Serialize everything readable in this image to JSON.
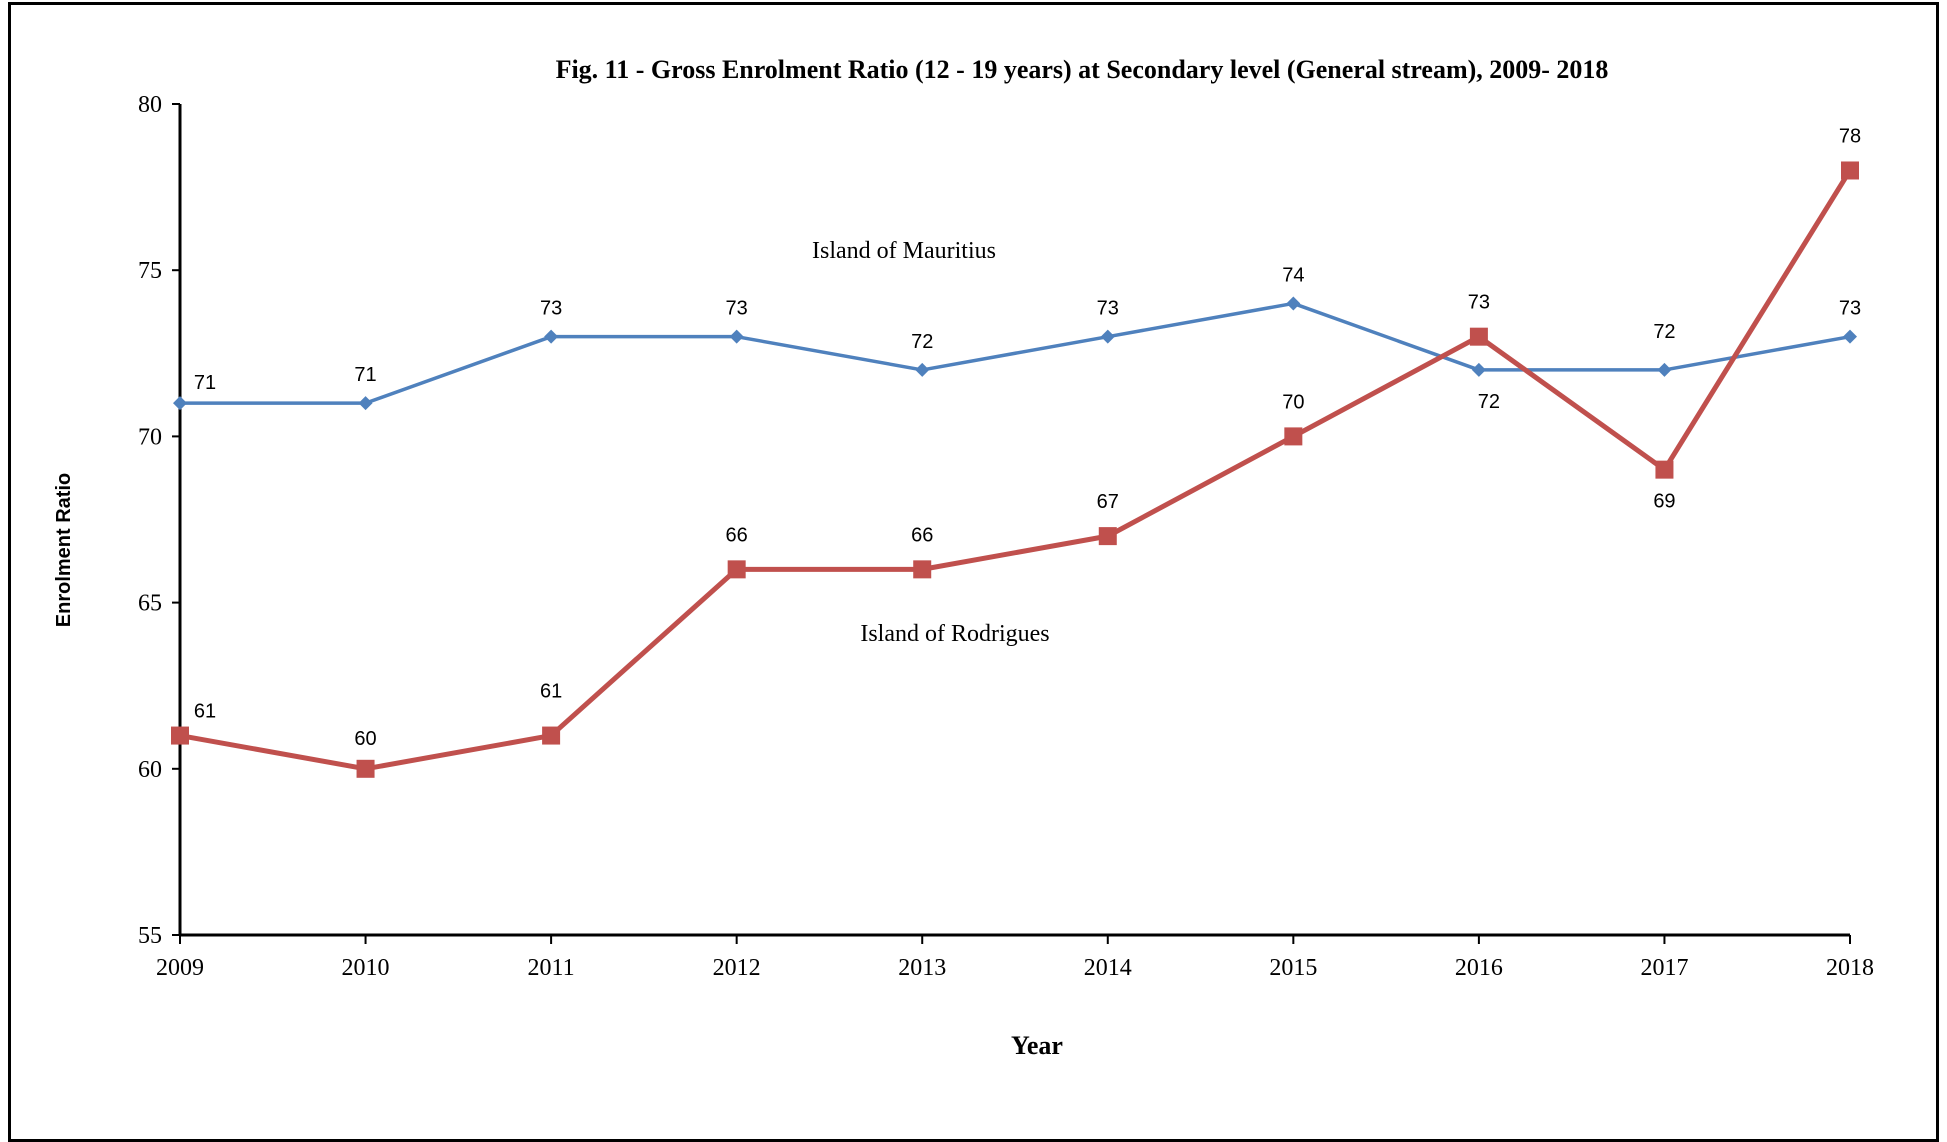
{
  "chart_data": {
    "type": "line",
    "title": "Fig. 11 - Gross Enrolment Ratio (12 - 19 years) at Secondary level (General stream), 2009- 2018",
    "xlabel": "Year",
    "ylabel": "Enrolment Ratio",
    "categories": [
      "2009",
      "2010",
      "2011",
      "2012",
      "2013",
      "2014",
      "2015",
      "2016",
      "2017",
      "2018"
    ],
    "ylim": [
      55,
      80
    ],
    "yticks": [
      55,
      60,
      65,
      70,
      75,
      80
    ],
    "grid": false,
    "series": [
      {
        "name": "Island of Mauritius",
        "color": "#4F81BD",
        "marker": "diamond",
        "values": [
          71,
          71,
          73,
          73,
          72,
          73,
          74,
          72,
          72,
          73
        ]
      },
      {
        "name": "Island of Rodrigues",
        "color": "#C0504D",
        "marker": "square",
        "values": [
          61,
          60,
          61,
          66,
          66,
          67,
          70,
          73,
          69,
          78
        ]
      }
    ]
  }
}
